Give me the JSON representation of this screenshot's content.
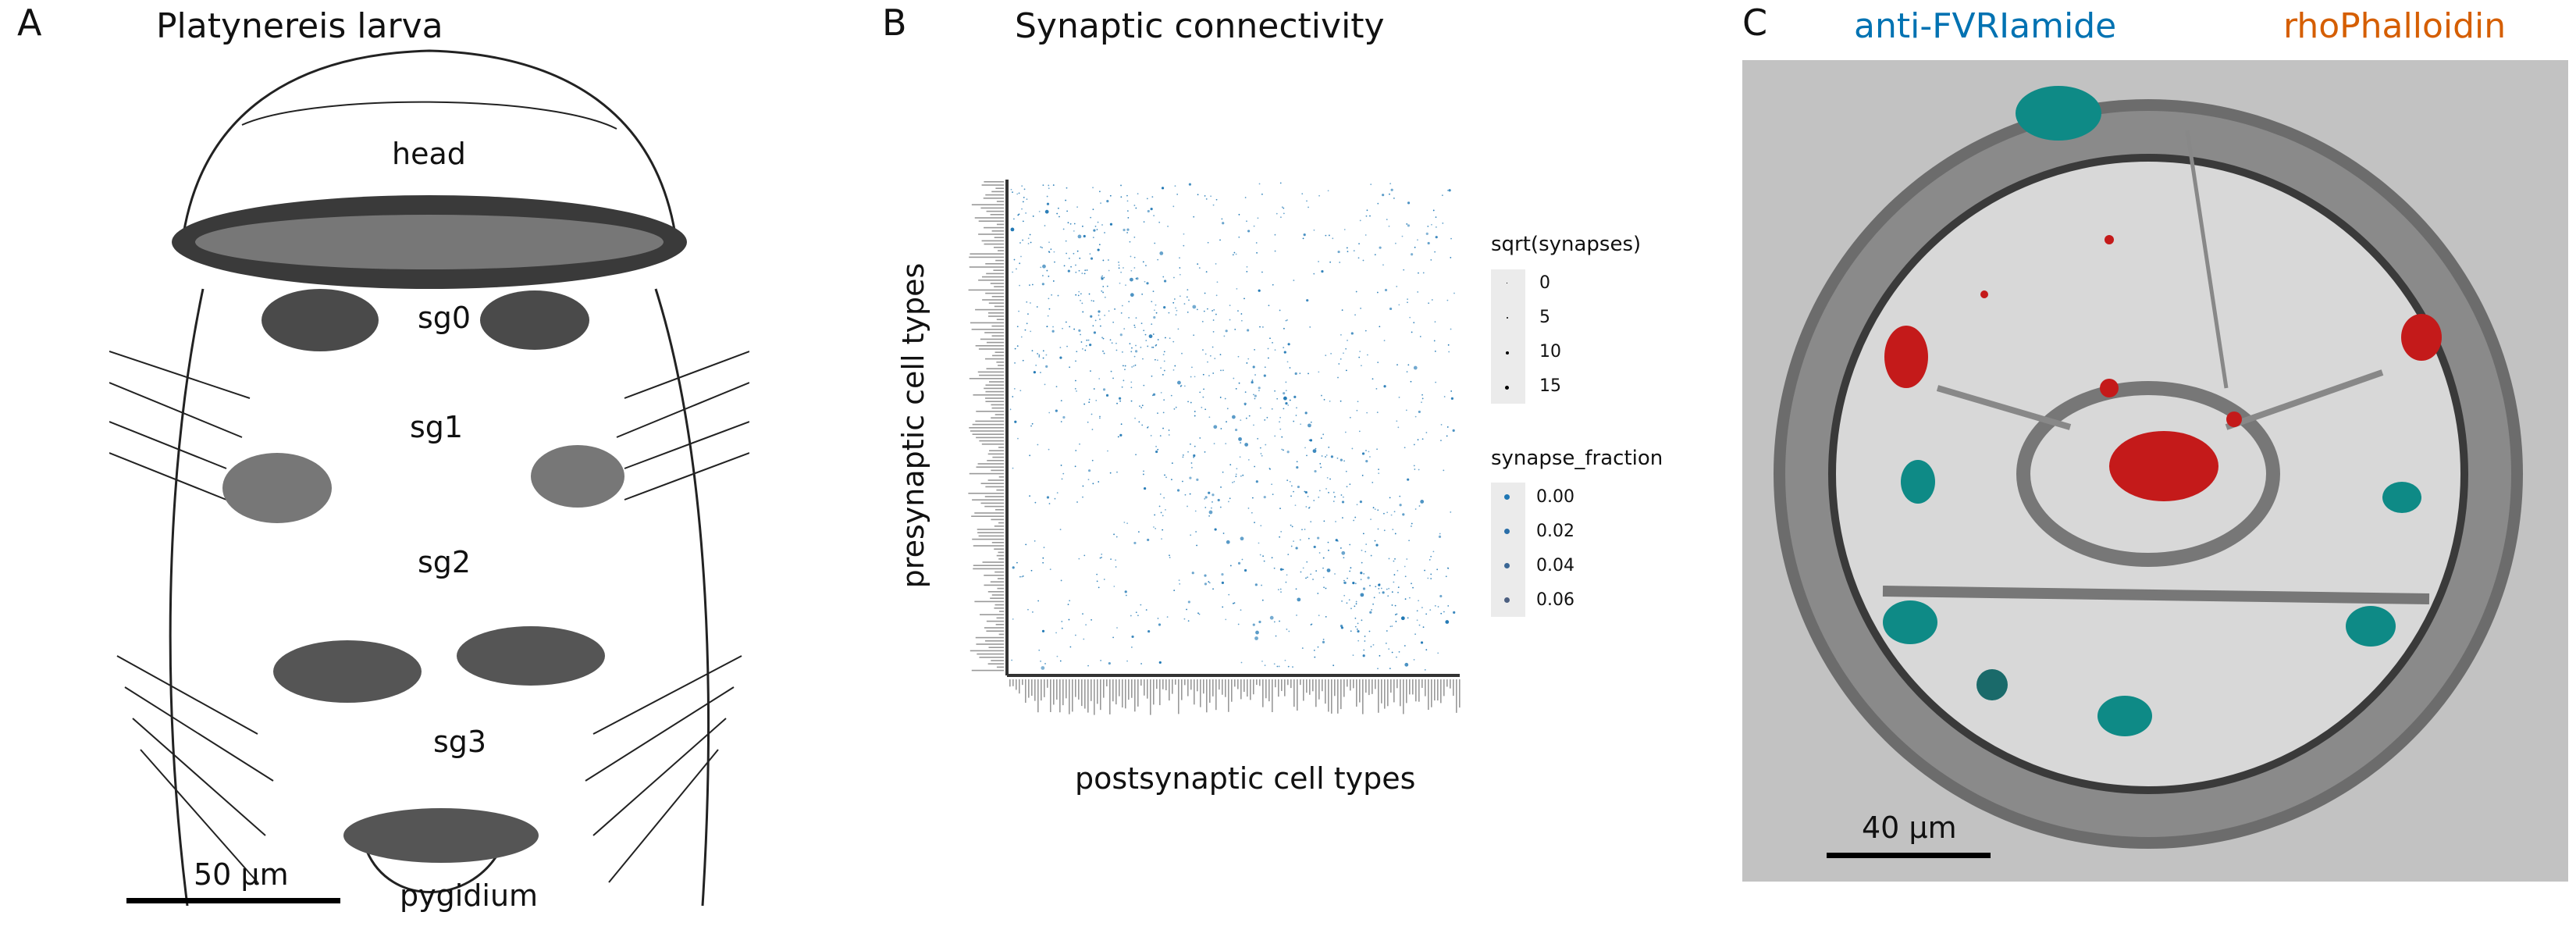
{
  "panel_a": {
    "letter": "A",
    "title": "Platynereis larva",
    "segments": [
      "head",
      "sg0",
      "sg1",
      "sg2",
      "sg3",
      "pygidium"
    ],
    "scale_label": "50 µm"
  },
  "panel_b": {
    "letter": "B",
    "title": "Synaptic connectivity",
    "ylabel": "presynaptic cell types",
    "xlabel": "postsynaptic cell types",
    "legend_size": {
      "title": "sqrt(synapses)",
      "items": [
        "0",
        "5",
        "10",
        "15"
      ]
    },
    "legend_color": {
      "title": "synapse_fraction",
      "items": [
        "0.00",
        "0.02",
        "0.04",
        "0.06"
      ]
    },
    "point_color": "#1f77b4"
  },
  "panel_c": {
    "letter": "C",
    "stain_1": "anti-FVRIamide",
    "stain_2": "rhoPhalloidin",
    "stain_1_color": "#0072b2",
    "stain_2_color": "#d55e00",
    "scale_label": "40 µm"
  },
  "chart_data": {
    "type": "scatter",
    "title": "Synaptic connectivity",
    "xlabel": "postsynaptic cell types",
    "ylabel": "presynaptic cell types",
    "size_legend": {
      "title": "sqrt(synapses)",
      "values": [
        0,
        5,
        10,
        15
      ]
    },
    "color_legend": {
      "title": "synapse_fraction",
      "values": [
        0.0,
        0.02,
        0.04,
        0.06
      ]
    },
    "grid": false,
    "legend_placement": "right"
  }
}
